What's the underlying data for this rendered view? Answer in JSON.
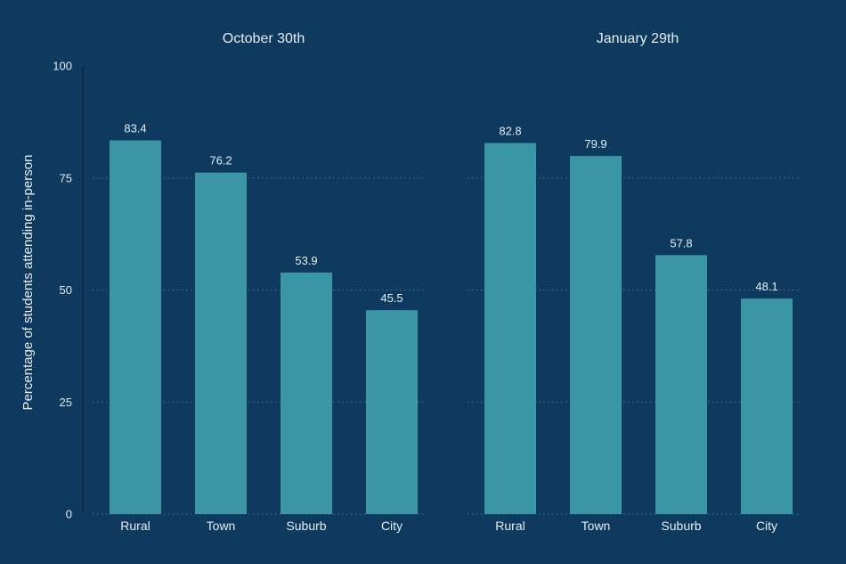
{
  "chart_data": {
    "type": "bar",
    "ylabel": "Percentage of students attending in-person",
    "ylim": [
      0,
      100
    ],
    "yticks": [
      "0",
      "25",
      "50",
      "75",
      "100"
    ],
    "grid": true,
    "colors": {
      "background": "#0d3a5e",
      "bar": "#3a96a5",
      "text": "#e6edf3",
      "grid": "#4d7897"
    },
    "panels": [
      {
        "title": "October 30th",
        "categories": [
          "Rural",
          "Town",
          "Suburb",
          "City"
        ],
        "values": [
          83.4,
          76.2,
          53.9,
          45.5
        ],
        "labels": [
          "83.4",
          "76.2",
          "53.9",
          "45.5"
        ]
      },
      {
        "title": "January 29th",
        "categories": [
          "Rural",
          "Town",
          "Suburb",
          "City"
        ],
        "values": [
          82.8,
          79.9,
          57.8,
          48.1
        ],
        "labels": [
          "82.8",
          "79.9",
          "57.8",
          "48.1"
        ]
      }
    ]
  }
}
